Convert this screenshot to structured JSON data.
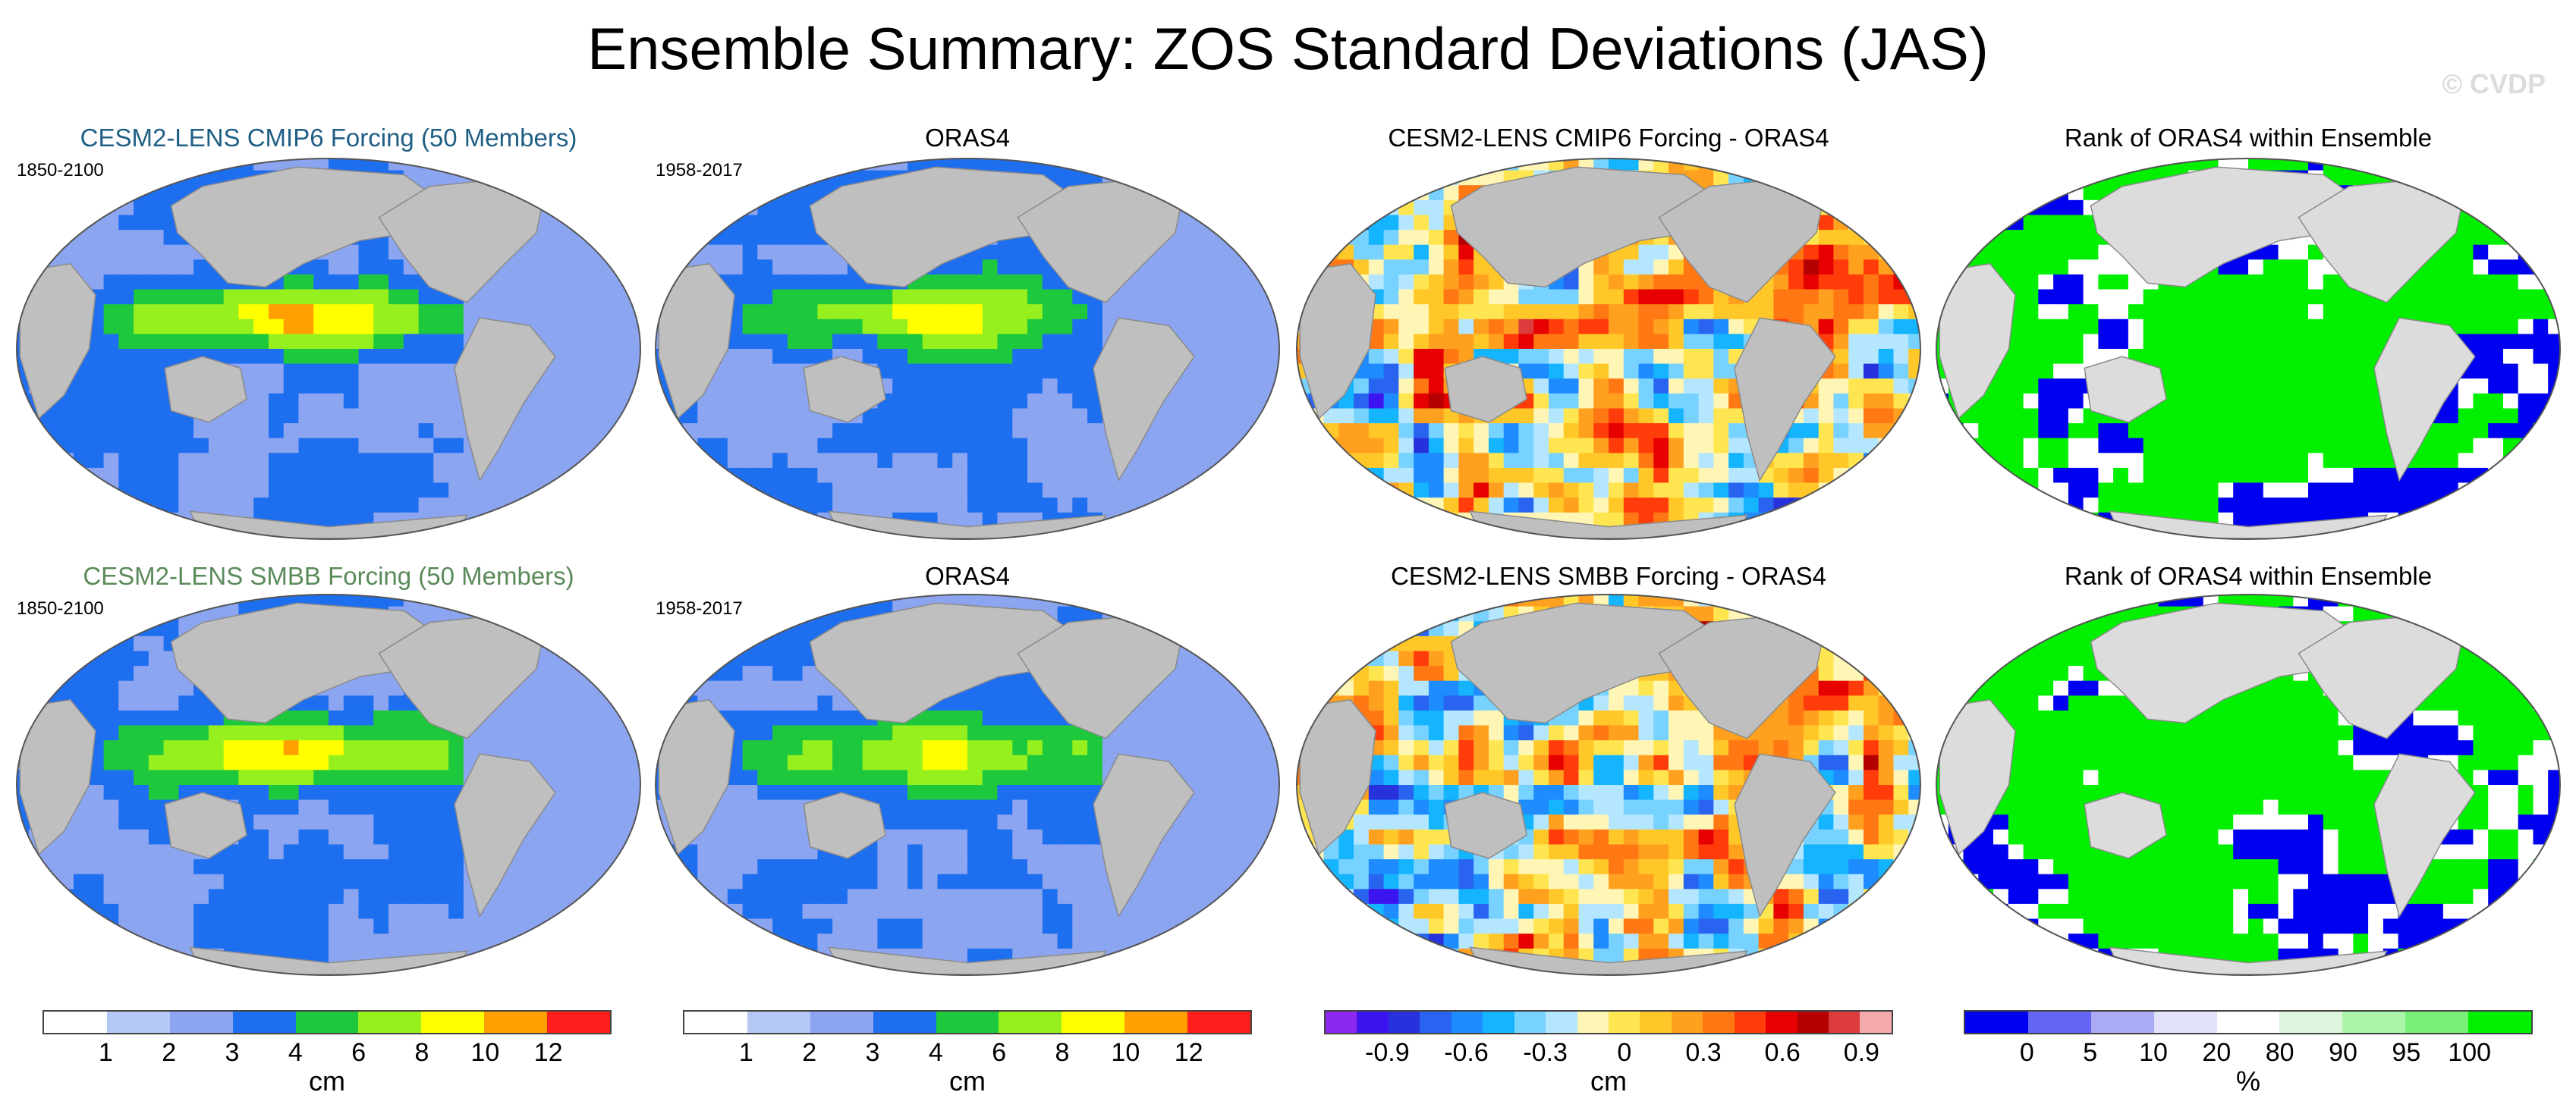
{
  "title": "Ensemble Summary: ZOS Standard Deviations (JAS)",
  "watermark": "© CVDP",
  "rows": [
    {
      "panels": [
        {
          "title": "CESM2-LENS CMIP6 Forcing (50 Members)",
          "title_color": "#1f5f86",
          "years": "1850-2100",
          "palette": "std"
        },
        {
          "title": "ORAS4",
          "title_color": "#000000",
          "years": "1958-2017",
          "palette": "std"
        },
        {
          "title": "CESM2-LENS CMIP6 Forcing - ORAS4",
          "title_color": "#000000",
          "years": "",
          "palette": "diff"
        },
        {
          "title": "Rank of ORAS4 within Ensemble",
          "title_color": "#000000",
          "years": "",
          "palette": "rank"
        }
      ]
    },
    {
      "panels": [
        {
          "title": "CESM2-LENS SMBB Forcing (50 Members)",
          "title_color": "#5a8a5a",
          "years": "1850-2100",
          "palette": "std"
        },
        {
          "title": "ORAS4",
          "title_color": "#000000",
          "years": "1958-2017",
          "palette": "std"
        },
        {
          "title": "CESM2-LENS SMBB Forcing - ORAS4",
          "title_color": "#000000",
          "years": "",
          "palette": "diff"
        },
        {
          "title": "Rank of ORAS4 within Ensemble",
          "title_color": "#000000",
          "years": "",
          "palette": "rank"
        }
      ]
    }
  ],
  "colorbars": [
    {
      "unit": "cm",
      "colors": [
        "#ffffff",
        "#b4c8f5",
        "#8ca5f0",
        "#1e6ef0",
        "#1ec83c",
        "#96f01e",
        "#ffff00",
        "#ffa000",
        "#ff1e1e"
      ],
      "labels": [
        "1",
        "2",
        "3",
        "4",
        "6",
        "8",
        "10",
        "12"
      ]
    },
    {
      "unit": "cm",
      "colors": [
        "#ffffff",
        "#b4c8f5",
        "#8ca5f0",
        "#1e6ef0",
        "#1ec83c",
        "#96f01e",
        "#ffff00",
        "#ffa000",
        "#ff1e1e"
      ],
      "labels": [
        "1",
        "2",
        "3",
        "4",
        "6",
        "8",
        "10",
        "12"
      ]
    },
    {
      "unit": "cm",
      "colors": [
        "#8c28f0",
        "#3c14f0",
        "#2832dc",
        "#2864f0",
        "#1e8cff",
        "#14b4ff",
        "#78d2ff",
        "#b4e6ff",
        "#fff5b4",
        "#ffe650",
        "#ffc828",
        "#ffa01e",
        "#ff7814",
        "#ff3c0a",
        "#e60000",
        "#b40000",
        "#dc3c3c",
        "#f5aaaa"
      ],
      "labels": [
        "-0.9",
        "-0.6",
        "-0.3",
        "0",
        "0.3",
        "0.6",
        "0.9"
      ]
    },
    {
      "unit": "%",
      "colors": [
        "#0000f0",
        "#6464f5",
        "#aaaaf5",
        "#e1e1fa",
        "#ffffff",
        "#dcf5dc",
        "#aaf5aa",
        "#78f078",
        "#00f000"
      ],
      "labels": [
        "0",
        "5",
        "10",
        "20",
        "80",
        "90",
        "95",
        "100"
      ]
    }
  ]
}
